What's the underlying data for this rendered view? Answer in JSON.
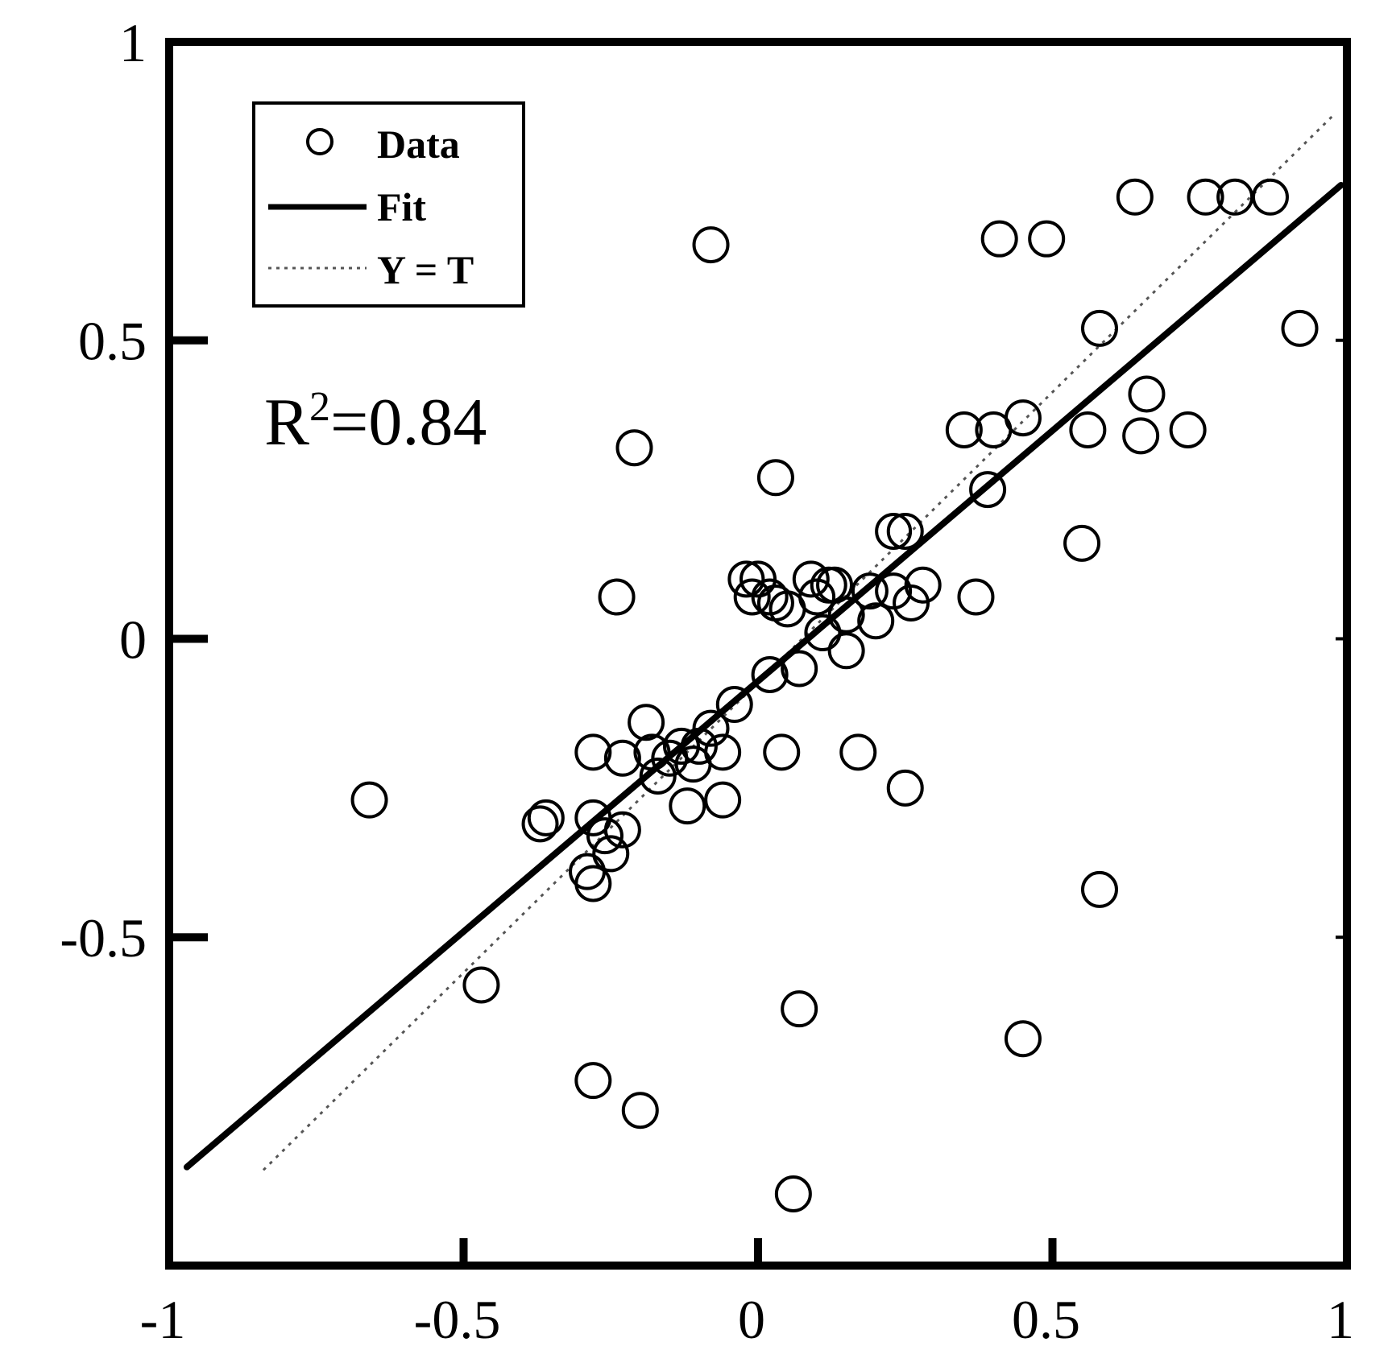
{
  "chart_data": {
    "type": "scatter",
    "title": "",
    "xlabel": "",
    "ylabel": "",
    "xlim": [
      -1,
      1
    ],
    "ylim": [
      -1.05,
      1
    ],
    "x_ticks": [
      "-1",
      "-0.5",
      "0",
      "0.5",
      "1"
    ],
    "y_ticks": [
      "-0.5",
      "0",
      "0.5",
      "1"
    ],
    "x_tick_values": [
      -1,
      -0.5,
      0,
      0.5,
      1
    ],
    "y_tick_values": [
      -0.5,
      0,
      0.5,
      1
    ],
    "legend": {
      "position": "top-left",
      "entries": [
        {
          "label": "Data",
          "marker": "circle"
        },
        {
          "label": "Fit",
          "line": "solid"
        },
        {
          "label": "Y = T",
          "line": "dotted"
        }
      ]
    },
    "annotation": {
      "base": "R",
      "sup": "2",
      "rest": "=0.84"
    },
    "fit_line": {
      "x": [
        -0.97,
        0.99
      ],
      "y": [
        -0.885,
        0.76
      ]
    },
    "identity_line": {
      "x": [
        -0.84,
        0.98
      ],
      "y": [
        -0.89,
        0.88
      ]
    },
    "series": [
      {
        "name": "Data",
        "marker": "circle",
        "points": [
          [
            -0.66,
            -0.27
          ],
          [
            -0.47,
            -0.58
          ],
          [
            -0.36,
            -0.3
          ],
          [
            -0.37,
            -0.31
          ],
          [
            -0.28,
            -0.19
          ],
          [
            -0.28,
            -0.3
          ],
          [
            -0.29,
            -0.39
          ],
          [
            -0.28,
            -0.41
          ],
          [
            -0.24,
            0.07
          ],
          [
            -0.26,
            -0.33
          ],
          [
            -0.25,
            -0.36
          ],
          [
            -0.23,
            -0.32
          ],
          [
            -0.23,
            -0.2
          ],
          [
            -0.19,
            -0.14
          ],
          [
            -0.18,
            -0.19
          ],
          [
            -0.17,
            -0.23
          ],
          [
            -0.15,
            -0.2
          ],
          [
            -0.13,
            -0.18
          ],
          [
            -0.12,
            -0.28
          ],
          [
            -0.11,
            -0.21
          ],
          [
            -0.1,
            -0.18
          ],
          [
            -0.08,
            -0.15
          ],
          [
            -0.06,
            -0.19
          ],
          [
            -0.06,
            -0.27
          ],
          [
            -0.04,
            -0.11
          ],
          [
            -0.28,
            -0.74
          ],
          [
            -0.2,
            -0.79
          ],
          [
            -0.21,
            0.32
          ],
          [
            -0.08,
            0.66
          ],
          [
            -0.02,
            0.1
          ],
          [
            0.0,
            0.1
          ],
          [
            -0.01,
            0.07
          ],
          [
            0.02,
            0.07
          ],
          [
            0.03,
            0.06
          ],
          [
            0.05,
            0.05
          ],
          [
            0.02,
            -0.06
          ],
          [
            0.04,
            -0.19
          ],
          [
            0.03,
            0.27
          ],
          [
            0.07,
            -0.05
          ],
          [
            0.09,
            0.1
          ],
          [
            0.1,
            0.07
          ],
          [
            0.11,
            0.01
          ],
          [
            0.12,
            0.09
          ],
          [
            0.13,
            0.09
          ],
          [
            0.15,
            0.04
          ],
          [
            0.15,
            -0.02
          ],
          [
            0.17,
            -0.19
          ],
          [
            0.19,
            0.08
          ],
          [
            0.2,
            0.03
          ],
          [
            0.23,
            0.08
          ],
          [
            0.23,
            0.18
          ],
          [
            0.25,
            0.18
          ],
          [
            0.26,
            0.06
          ],
          [
            0.25,
            -0.25
          ],
          [
            0.28,
            0.09
          ],
          [
            0.07,
            -0.62
          ],
          [
            0.06,
            -0.93
          ],
          [
            0.35,
            0.35
          ],
          [
            0.37,
            0.07
          ],
          [
            0.39,
            0.25
          ],
          [
            0.4,
            0.35
          ],
          [
            0.41,
            0.67
          ],
          [
            0.45,
            0.37
          ],
          [
            0.45,
            -0.67
          ],
          [
            0.49,
            0.67
          ],
          [
            0.55,
            0.16
          ],
          [
            0.56,
            0.35
          ],
          [
            0.58,
            0.52
          ],
          [
            0.58,
            -0.42
          ],
          [
            0.64,
            0.74
          ],
          [
            0.65,
            0.34
          ],
          [
            0.66,
            0.41
          ],
          [
            0.73,
            0.35
          ],
          [
            0.76,
            0.74
          ],
          [
            0.81,
            0.74
          ],
          [
            0.87,
            0.74
          ],
          [
            0.92,
            0.52
          ]
        ]
      }
    ]
  }
}
